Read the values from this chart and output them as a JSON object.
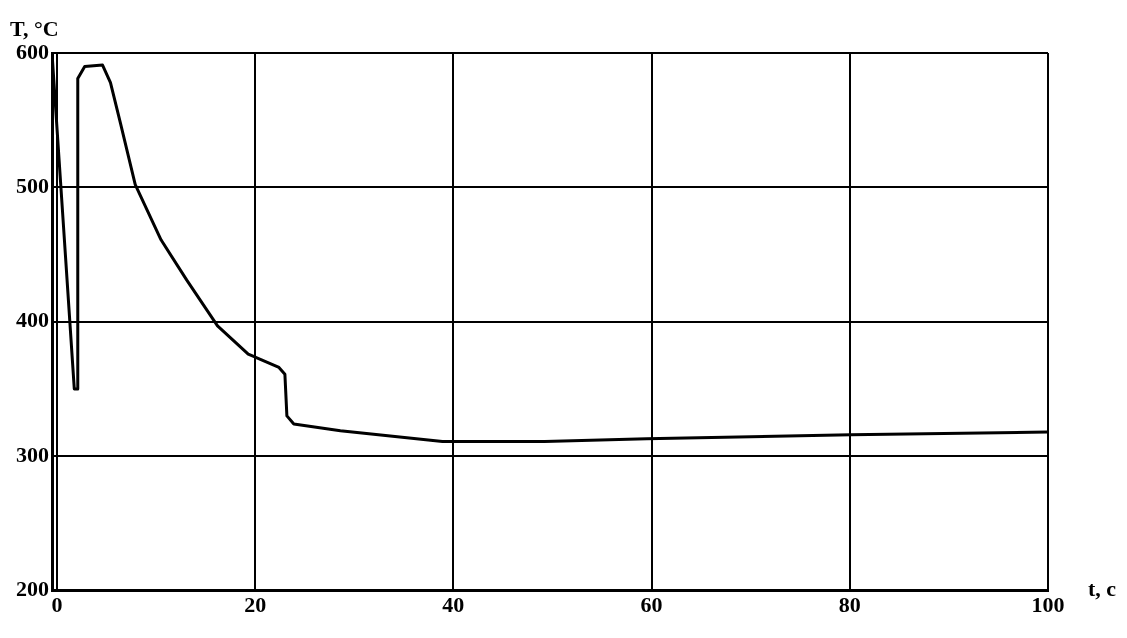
{
  "chart_data": {
    "type": "line",
    "xlabel": "t, c",
    "ylabel": "T, °C",
    "x": [
      -0.5,
      1.75,
      2.05,
      2.1,
      2.8,
      4.6,
      5.4,
      6.4,
      7.9,
      10.5,
      13.1,
      16.2,
      19.3,
      22.4,
      23,
      23.2,
      23.9,
      28.6,
      38.9,
      49.2,
      59.5,
      80.1,
      100
    ],
    "series": [
      {
        "color": "#000000",
        "values": [
          600,
          350,
          350,
          581,
          590,
          591,
          578,
          548,
          502,
          461,
          431,
          397,
          376,
          366,
          361,
          330,
          324,
          319,
          311,
          311,
          313,
          316,
          318
        ]
      }
    ],
    "xlim": [
      -0.5,
      100
    ],
    "xticks": [
      0,
      20,
      40,
      60,
      80,
      100
    ],
    "ylim": [
      200,
      600
    ],
    "yticks": [
      200,
      300,
      400,
      500,
      600
    ],
    "grid": true,
    "legend": false,
    "marker": "none",
    "line_style": "solid"
  }
}
